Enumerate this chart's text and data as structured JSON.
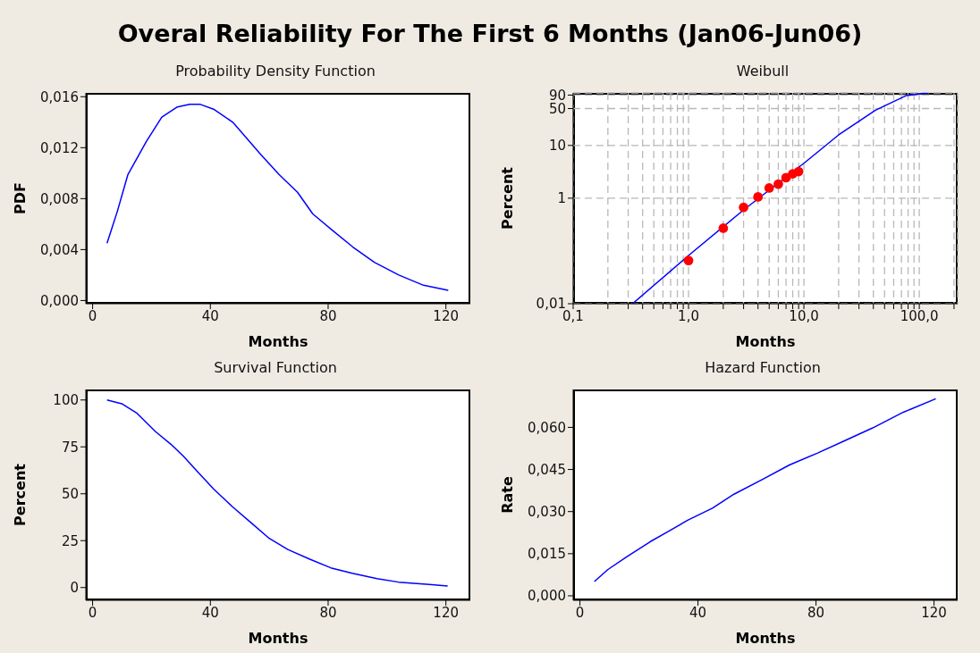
{
  "chart_data": [
    {
      "type": "line",
      "title": "Overal Reliability For The First 6 Months (Jan06-Jun06)",
      "subtitle": "Probability Density Function",
      "xlabel": "Months",
      "ylabel": "PDF",
      "x": [
        4.9,
        8.4,
        12,
        18.3,
        23.5,
        28.8,
        33,
        36.6,
        41.3,
        47.6,
        57,
        63.3,
        69.6,
        74.8,
        81,
        88.4,
        95.7,
        104,
        112.4,
        120.8
      ],
      "series": [
        {
          "color": "#0000ff",
          "values": [
            0.0045,
            0.007,
            0.0099,
            0.0125,
            0.0144,
            0.0152,
            0.0154,
            0.0154,
            0.015,
            0.014,
            0.0115,
            0.0099,
            0.0085,
            0.0068,
            0.0056,
            0.0042,
            0.003,
            0.002,
            0.0012,
            0.0008
          ]
        }
      ],
      "xlim": [
        -2.3,
        128.3
      ],
      "ylim": [
        -0.00025,
        0.0163
      ],
      "xticks": [
        0,
        40,
        80,
        120
      ],
      "yticks": [
        {
          "value": 0,
          "label": "0,000"
        },
        {
          "value": 0.004,
          "label": "0,004"
        },
        {
          "value": 0.008,
          "label": "0,008"
        },
        {
          "value": 0.012,
          "label": "0,012"
        },
        {
          "value": 0.016,
          "label": "0,016"
        }
      ],
      "grid": false,
      "legend": false
    },
    {
      "type": "line",
      "title": "Weibull",
      "xlabel": "Months",
      "ylabel": "Percent",
      "log": "xy",
      "grid": true,
      "legend": false,
      "series": [
        {
          "color": "#0000ff",
          "x": [
            0.327,
            1,
            3,
            10,
            19.9,
            41.7,
            76.7,
            120
          ],
          "values": [
            0.01,
            0.082,
            0.6,
            4.6,
            15.7,
            46.5,
            87.7,
            99
          ]
        },
        {
          "type": "scatter",
          "color": "#ff0000",
          "marker": "circle",
          "x": [
            1,
            2,
            3,
            4,
            5,
            6,
            7,
            8,
            9
          ],
          "values": [
            0.066,
            0.27,
            0.67,
            1.06,
            1.56,
            1.85,
            2.45,
            2.9,
            3.2
          ]
        }
      ],
      "xlim": [
        0.1,
        215
      ],
      "ylim": [
        0.01,
        99
      ],
      "xticks": [
        {
          "value": 0.1,
          "label": "0,1"
        },
        {
          "value": 0.2,
          "label": null
        },
        {
          "value": 0.3,
          "label": null
        },
        {
          "value": 0.4,
          "label": null
        },
        {
          "value": 0.5,
          "label": null
        },
        {
          "value": 0.6,
          "label": null
        },
        {
          "value": 0.7,
          "label": null
        },
        {
          "value": 0.8,
          "label": null
        },
        {
          "value": 0.9,
          "label": null
        },
        {
          "value": 1,
          "label": "1,0"
        },
        {
          "value": 2,
          "label": null
        },
        {
          "value": 3,
          "label": null
        },
        {
          "value": 4,
          "label": null
        },
        {
          "value": 5,
          "label": null
        },
        {
          "value": 6,
          "label": null
        },
        {
          "value": 7,
          "label": null
        },
        {
          "value": 8,
          "label": null
        },
        {
          "value": 9,
          "label": null
        },
        {
          "value": 10,
          "label": "10,0"
        },
        {
          "value": 20,
          "label": null
        },
        {
          "value": 30,
          "label": null
        },
        {
          "value": 40,
          "label": null
        },
        {
          "value": 50,
          "label": null
        },
        {
          "value": 60,
          "label": null
        },
        {
          "value": 70,
          "label": null
        },
        {
          "value": 80,
          "label": null
        },
        {
          "value": 90,
          "label": null
        },
        {
          "value": 100,
          "label": "100,0"
        },
        {
          "value": 200,
          "label": null
        }
      ],
      "yticks": [
        {
          "value": 0.01,
          "label": "0,01"
        },
        1,
        10,
        50,
        90
      ]
    },
    {
      "type": "line",
      "title": "Survival Function",
      "xlabel": "Months",
      "ylabel": "Percent",
      "x": [
        4.9,
        9.9,
        15.1,
        21.4,
        26.6,
        30.8,
        35,
        41.2,
        47.5,
        53.8,
        60,
        66.3,
        73.6,
        80.9,
        88.2,
        96.6,
        103.9,
        114.3,
        120.6
      ],
      "series": [
        {
          "color": "#0000ff",
          "values": [
            100,
            98,
            92.9,
            83.1,
            76.4,
            70.1,
            62.8,
            52.4,
            43.1,
            34.6,
            26.2,
            20.3,
            15.2,
            10.5,
            7.6,
            4.7,
            2.9,
            1.7,
            0.8
          ]
        }
      ],
      "xlim": [
        -2.3,
        128.3
      ],
      "ylim": [
        -6.8,
        105.6
      ],
      "xticks": [
        0,
        40,
        80,
        120
      ],
      "yticks": [
        0,
        25,
        50,
        75,
        100
      ],
      "grid": false,
      "legend": false
    },
    {
      "type": "line",
      "title": "Hazard Function",
      "xlabel": "Months",
      "ylabel": "Rate",
      "x": [
        4.9,
        9.4,
        15.7,
        24,
        29.7,
        36.5,
        44.9,
        52.2,
        61.6,
        71,
        80.4,
        89.8,
        99.2,
        109.6,
        120.6
      ],
      "series": [
        {
          "color": "#0000ff",
          "values": [
            0.0051,
            0.0093,
            0.0138,
            0.0194,
            0.0228,
            0.0269,
            0.0312,
            0.0362,
            0.0413,
            0.0466,
            0.0508,
            0.0553,
            0.0598,
            0.0654,
            0.0702
          ]
        }
      ],
      "xlim": [
        -2.3,
        128
      ],
      "ylim": [
        -0.0016,
        0.0735
      ],
      "xticks": [
        0,
        40,
        80,
        120
      ],
      "yticks": [
        {
          "value": 0,
          "label": "0,000"
        },
        {
          "value": 0.015,
          "label": "0,015"
        },
        {
          "value": 0.03,
          "label": "0,030"
        },
        {
          "value": 0.045,
          "label": "0,045"
        },
        {
          "value": 0.06,
          "label": "0,060"
        }
      ],
      "grid": false,
      "legend": false
    }
  ]
}
